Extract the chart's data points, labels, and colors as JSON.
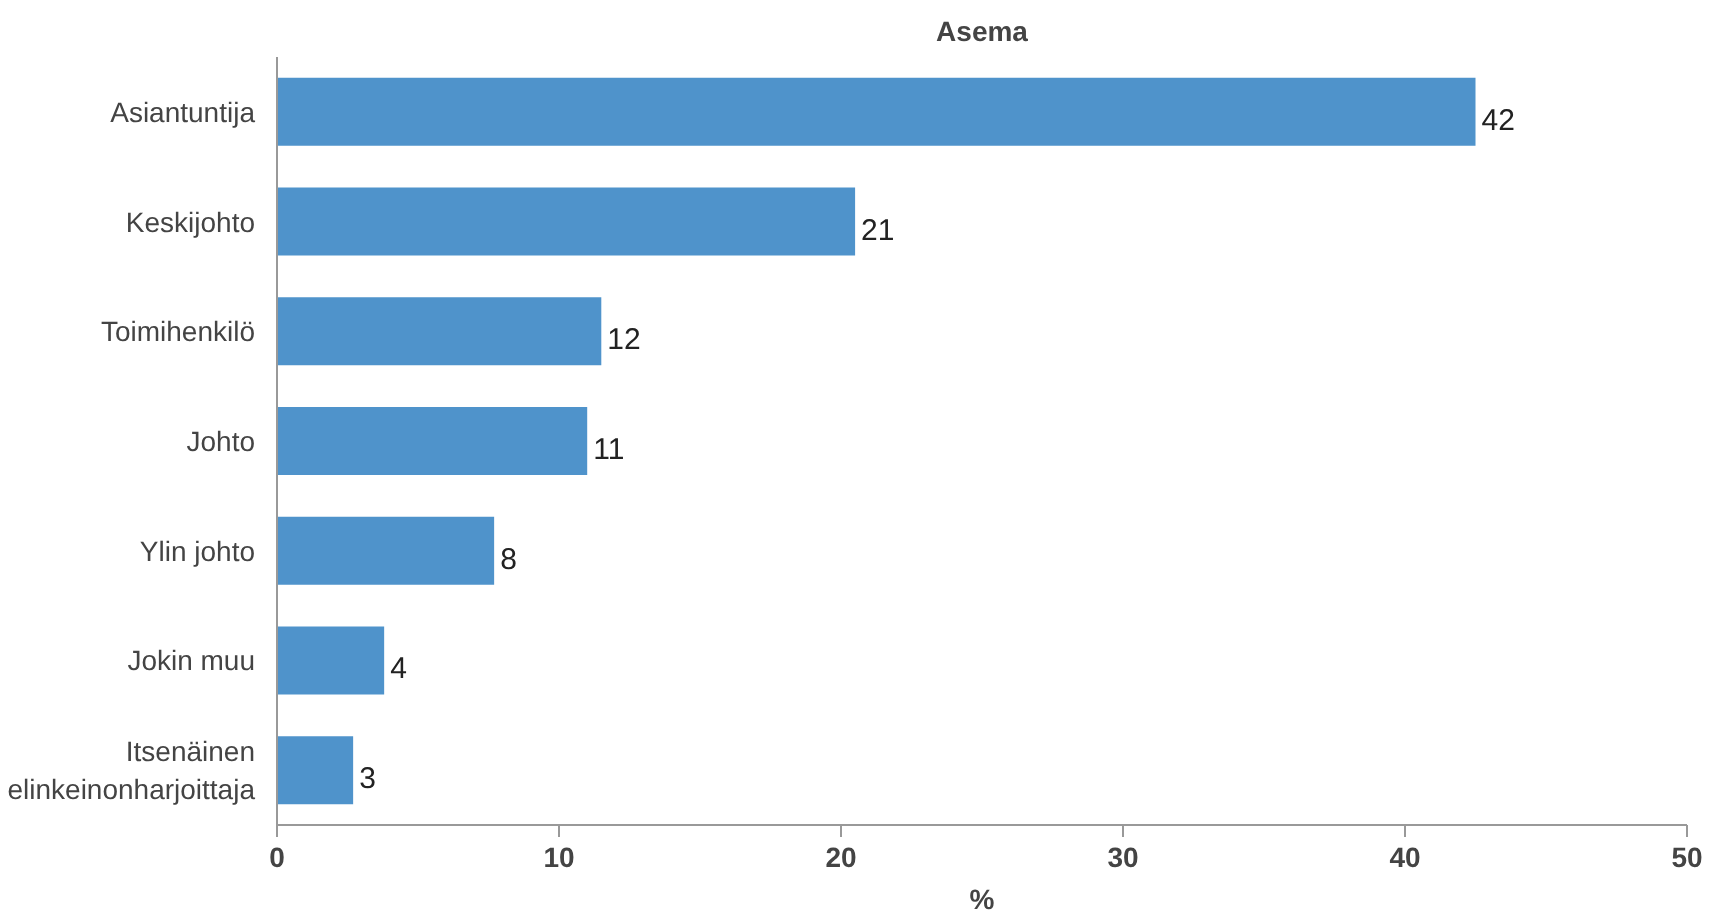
{
  "chart_data": {
    "type": "bar",
    "orientation": "horizontal",
    "title": "Asema",
    "xlabel": "%",
    "categories": [
      "Asiantuntija",
      "Keskijohto",
      "Toimihenkilö",
      "Johto",
      "Ylin johto",
      "Jokin muu",
      "Itsenäinen elinkeinonharjoittaja"
    ],
    "values": [
      42.5,
      20.5,
      11.5,
      11.0,
      7.7,
      3.8,
      2.7
    ],
    "value_labels": [
      "42",
      "21",
      "12",
      "11",
      "8",
      "4",
      "3"
    ],
    "color": "#4f93cb",
    "xlim": [
      0,
      50
    ],
    "xticks": [
      0,
      10,
      20,
      30,
      40,
      50
    ],
    "grid": false
  }
}
